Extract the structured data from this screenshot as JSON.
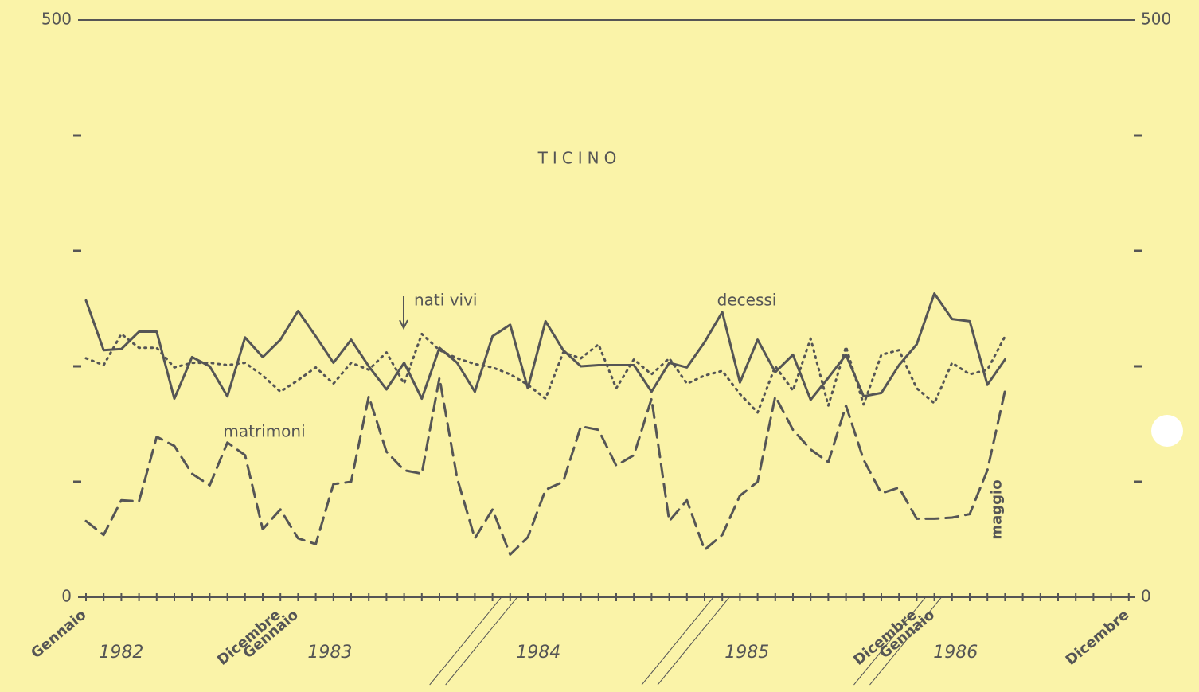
{
  "chart_data": {
    "type": "line",
    "title": "TICINO",
    "categories": [
      "Gennaio",
      null,
      null,
      null,
      null,
      null,
      null,
      null,
      null,
      null,
      null,
      "Dicembre",
      "Gennaio",
      null,
      null,
      null,
      null,
      null,
      null,
      null,
      null,
      null,
      null,
      null,
      null,
      null,
      null,
      null,
      null,
      null,
      null,
      null,
      null,
      null,
      null,
      null,
      null,
      null,
      null,
      null,
      null,
      null,
      null,
      null,
      null,
      null,
      null,
      "Dicembre",
      "Gennaio",
      null,
      null,
      null,
      "maggio",
      null,
      null,
      null,
      null,
      null,
      null,
      "Dicembre"
    ],
    "years": [
      "1982",
      "1983",
      "1984",
      "1985",
      "1986"
    ],
    "ylim": [
      0,
      500
    ],
    "yticks": [
      0,
      500
    ],
    "minor_yticks": [
      100,
      200,
      300,
      400
    ],
    "series": [
      {
        "name": "decessi",
        "color": "#555555",
        "style": "solid",
        "values": [
          257,
          214,
          215,
          230,
          230,
          172,
          208,
          200,
          174,
          225,
          208,
          223,
          248,
          226,
          203,
          223,
          200,
          180,
          203,
          172,
          216,
          203,
          178,
          226,
          236,
          181,
          239,
          214,
          200,
          201,
          201,
          201,
          178,
          203,
          199,
          221,
          247,
          186,
          223,
          195,
          210,
          171,
          190,
          210,
          174,
          177,
          201,
          219,
          263,
          241,
          239,
          184,
          206,
          null,
          null,
          null,
          null,
          null,
          null,
          null
        ]
      },
      {
        "name": "nati vivi",
        "color": "#555555",
        "style": "dotted",
        "values": [
          207,
          201,
          228,
          216,
          216,
          199,
          203,
          203,
          201,
          203,
          192,
          178,
          188,
          199,
          185,
          203,
          197,
          212,
          185,
          228,
          214,
          207,
          202,
          199,
          193,
          184,
          172,
          212,
          207,
          219,
          181,
          206,
          193,
          207,
          185,
          192,
          196,
          176,
          160,
          200,
          179,
          224,
          166,
          217,
          167,
          210,
          214,
          181,
          168,
          203,
          193,
          197,
          226,
          null,
          null,
          null,
          null,
          null,
          null,
          null
        ]
      },
      {
        "name": "matrimoni",
        "color": "#555555",
        "style": "dashed",
        "values": [
          66,
          54,
          84,
          83,
          139,
          131,
          107,
          97,
          134,
          123,
          59,
          76,
          51,
          46,
          98,
          100,
          174,
          126,
          110,
          107,
          190,
          103,
          51,
          76,
          37,
          52,
          93,
          100,
          148,
          145,
          114,
          123,
          172,
          66,
          84,
          41,
          54,
          88,
          100,
          174,
          145,
          128,
          117,
          166,
          119,
          90,
          95,
          68,
          68,
          69,
          72,
          110,
          179,
          null,
          null,
          null,
          null,
          null,
          null,
          null
        ]
      }
    ]
  }
}
